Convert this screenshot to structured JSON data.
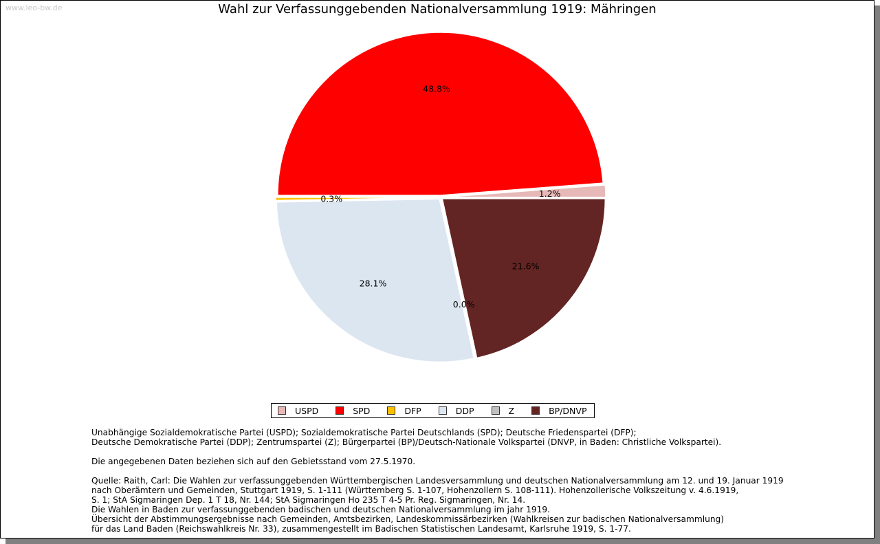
{
  "watermark": "www.leo-bw.de",
  "chart_data": {
    "type": "pie",
    "title": "Wahl zur Verfassunggebenden Nationalversammlung 1919: Mähringen",
    "categories": [
      "USPD",
      "SPD",
      "DFP",
      "DDP",
      "Z",
      "BP/DNVP"
    ],
    "values": [
      1.2,
      48.8,
      0.3,
      28.1,
      0.0,
      21.6
    ],
    "labels": [
      "1.2%",
      "48.8%",
      "0.3%",
      "28.1%",
      "0.0%",
      "21.6%"
    ],
    "colors": [
      "#e6b8b7",
      "#ff0000",
      "#ffc000",
      "#dce6f1",
      "#c0c0c0",
      "#632523"
    ],
    "start_angle_deg": 0,
    "direction": "counterclockwise",
    "legend_position": "bottom"
  },
  "notes": {
    "abbrev": "Unabhängige Sozialdemokratische Partei (USPD); Sozialdemokratische Partei Deutschlands (SPD); Deutsche Friedenspartei (DFP);\nDeutsche Demokratische Partei (DDP); Zentrumspartei (Z); Bürgerpartei (BP)/Deutsch-Nationale Volkspartei (DNVP, in Baden: Christliche Volkspartei).",
    "gebiet": "Die angegebenen Daten beziehen sich auf den Gebietsstand vom 27.5.1970.",
    "quelle": "Quelle: Raith, Carl: Die Wahlen zur verfassunggebenden Württembergischen Landesversammlung und deutschen Nationalversammlung am 12. und 19. Januar 1919\nnach Oberämtern und Gemeinden, Stuttgart 1919, S. 1-111 (Württemberg S. 1-107, Hohenzollern S. 108-111). Hohenzollerische Volkszeitung v. 4.6.1919,\nS. 1; StA Sigmaringen Dep. 1 T 18, Nr. 144; StA Sigmaringen Ho 235 T 4-5 Pr. Reg. Sigmaringen, Nr. 14.\nDie Wahlen in Baden zur verfassunggebenden badischen und deutschen Nationalversammlung im jahr 1919.\nÜbersicht der Abstimmungsergebnisse nach Gemeinden, Amtsbezirken, Landeskommissärbezirken (Wahlkreisen zur badischen Nationalversammlung)\nfür das Land Baden (Reichswahlkreis Nr. 33), zusammengestellt im Badischen Statistischen Landesamt, Karlsruhe 1919, S. 1-77."
  }
}
